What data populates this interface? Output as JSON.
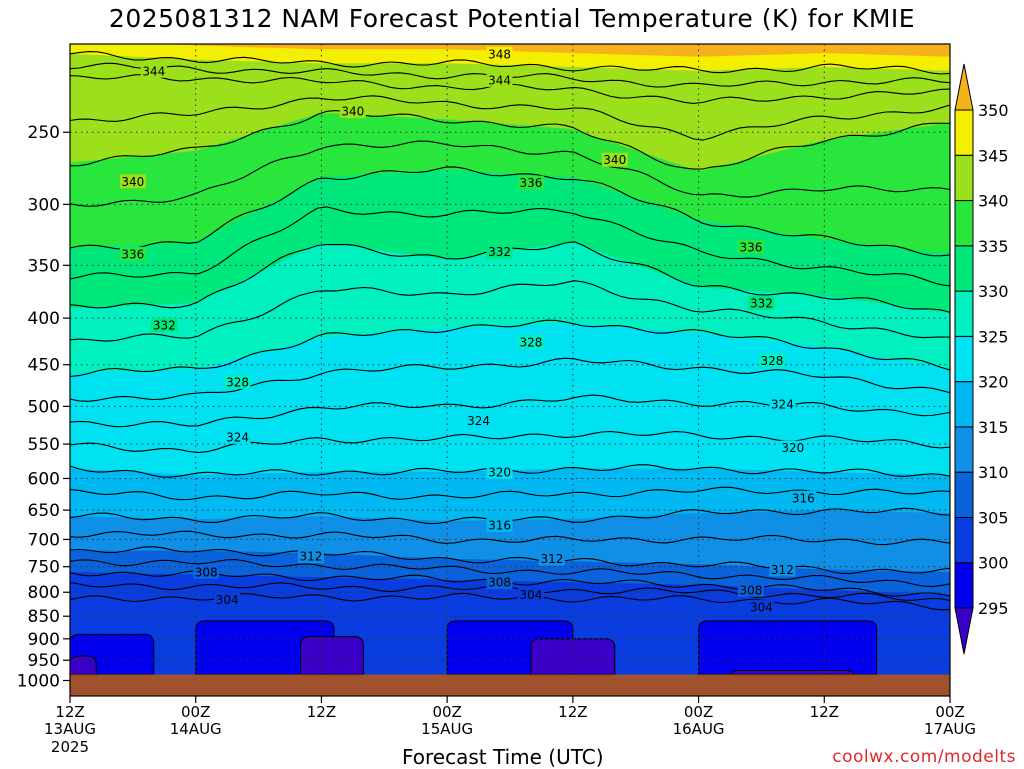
{
  "chart_data": {
    "type": "heatmap",
    "title": "2025081312 NAM Forecast Potential Temperature (K) for KMIE",
    "xlabel": "Forecast Time (UTC)",
    "ylabel": "",
    "credit": "coolwx.com/modelts",
    "y_scale": "pressure (log)",
    "y_range_hpa": [
      200,
      1040
    ],
    "y_ticks": [
      250,
      300,
      350,
      400,
      450,
      500,
      550,
      600,
      650,
      700,
      750,
      800,
      850,
      900,
      950,
      1000
    ],
    "x_hours_range": [
      0,
      84
    ],
    "x_ticks": [
      {
        "hour": 0,
        "time": "12Z",
        "date": "13AUG",
        "year": "2025"
      },
      {
        "hour": 12,
        "time": "00Z",
        "date": "14AUG",
        "year": ""
      },
      {
        "hour": 24,
        "time": "12Z",
        "date": "",
        "year": ""
      },
      {
        "hour": 36,
        "time": "00Z",
        "date": "15AUG",
        "year": ""
      },
      {
        "hour": 48,
        "time": "12Z",
        "date": "",
        "year": ""
      },
      {
        "hour": 60,
        "time": "00Z",
        "date": "16AUG",
        "year": ""
      },
      {
        "hour": 72,
        "time": "12Z",
        "date": "",
        "year": ""
      },
      {
        "hour": 84,
        "time": "00Z",
        "date": "17AUG",
        "year": ""
      }
    ],
    "grid": "dotted",
    "ground_level_hpa": 985,
    "colorbar": {
      "labels": [
        295,
        300,
        305,
        310,
        315,
        320,
        325,
        330,
        335,
        340,
        345,
        350
      ],
      "bands": [
        {
          "from": 290,
          "to": 295,
          "color": "#3b00c8"
        },
        {
          "from": 295,
          "to": 300,
          "color": "#0000ee"
        },
        {
          "from": 300,
          "to": 305,
          "color": "#0a3ddf"
        },
        {
          "from": 305,
          "to": 310,
          "color": "#0b63dc"
        },
        {
          "from": 310,
          "to": 315,
          "color": "#0f8fe6"
        },
        {
          "from": 315,
          "to": 320,
          "color": "#00b8f2"
        },
        {
          "from": 320,
          "to": 325,
          "color": "#00e2f2"
        },
        {
          "from": 325,
          "to": 330,
          "color": "#00f0c0"
        },
        {
          "from": 330,
          "to": 335,
          "color": "#00e77c"
        },
        {
          "from": 335,
          "to": 340,
          "color": "#29e63c"
        },
        {
          "from": 340,
          "to": 345,
          "color": "#9be01a"
        },
        {
          "from": 345,
          "to": 350,
          "color": "#f4ee00"
        },
        {
          "from": 350,
          "to": 355,
          "color": "#f6b21a"
        }
      ]
    },
    "contours_k": [
      304,
      308,
      312,
      316,
      320,
      324,
      328,
      332,
      336,
      340,
      344,
      348
    ],
    "contour_profile": [
      {
        "theta": 348,
        "hours": [
          0,
          12,
          24,
          36,
          48,
          60,
          72,
          84
        ],
        "hpa": [
          205,
          208,
          210,
          210,
          212,
          214,
          212,
          214
        ]
      },
      {
        "theta": 344,
        "hours": [
          0,
          12,
          24,
          36,
          48,
          60,
          72,
          84
        ],
        "hpa": [
          218,
          218,
          220,
          223,
          224,
          232,
          228,
          226
        ]
      },
      {
        "theta": 340,
        "hours": [
          0,
          12,
          24,
          36,
          48,
          60,
          72,
          84
        ],
        "hpa": [
          270,
          262,
          238,
          242,
          248,
          276,
          255,
          244
        ]
      },
      {
        "theta": 336,
        "hours": [
          0,
          12,
          24,
          36,
          48,
          60,
          72,
          84
        ],
        "hpa": [
          335,
          330,
          280,
          275,
          280,
          312,
          328,
          340
        ]
      },
      {
        "theta": 332,
        "hours": [
          0,
          12,
          24,
          36,
          48,
          60,
          72,
          84
        ],
        "hpa": [
          390,
          385,
          330,
          345,
          330,
          370,
          378,
          395
        ]
      },
      {
        "theta": 328,
        "hours": [
          0,
          12,
          24,
          36,
          48,
          60,
          72,
          84
        ],
        "hpa": [
          460,
          455,
          420,
          410,
          405,
          415,
          430,
          455
        ]
      },
      {
        "theta": 324,
        "hours": [
          0,
          12,
          24,
          36,
          48,
          60,
          72,
          84
        ],
        "hpa": [
          520,
          525,
          500,
          500,
          490,
          495,
          500,
          510
        ]
      },
      {
        "theta": 320,
        "hours": [
          0,
          12,
          24,
          36,
          48,
          60,
          72,
          84
        ],
        "hpa": [
          585,
          595,
          590,
          590,
          585,
          585,
          590,
          595
        ]
      },
      {
        "theta": 316,
        "hours": [
          0,
          12,
          24,
          36,
          48,
          60,
          72,
          84
        ],
        "hpa": [
          660,
          665,
          660,
          668,
          665,
          655,
          650,
          655
        ]
      },
      {
        "theta": 312,
        "hours": [
          0,
          12,
          24,
          36,
          48,
          60,
          72,
          84
        ],
        "hpa": [
          720,
          720,
          725,
          735,
          740,
          745,
          755,
          760
        ]
      },
      {
        "theta": 308,
        "hours": [
          0,
          12,
          24,
          36,
          48,
          60,
          72,
          84
        ],
        "hpa": [
          760,
          765,
          770,
          775,
          780,
          785,
          795,
          805
        ]
      },
      {
        "theta": 304,
        "hours": [
          0,
          12,
          24,
          36,
          48,
          60,
          72,
          84
        ],
        "hpa": [
          815,
          810,
          810,
          810,
          812,
          815,
          818,
          830
        ]
      }
    ],
    "contour_labels": [
      {
        "text": "348",
        "hour": 41,
        "hpa": 205
      },
      {
        "text": "344",
        "hour": 8,
        "hpa": 214
      },
      {
        "text": "344",
        "hour": 41,
        "hpa": 219
      },
      {
        "text": "340",
        "hour": 27,
        "hpa": 237
      },
      {
        "text": "340",
        "hour": 52,
        "hpa": 268
      },
      {
        "text": "340",
        "hour": 6,
        "hpa": 283
      },
      {
        "text": "336",
        "hour": 44,
        "hpa": 284
      },
      {
        "text": "336",
        "hour": 65,
        "hpa": 334
      },
      {
        "text": "336",
        "hour": 6,
        "hpa": 340
      },
      {
        "text": "332",
        "hour": 41,
        "hpa": 338
      },
      {
        "text": "332",
        "hour": 66,
        "hpa": 385
      },
      {
        "text": "332",
        "hour": 9,
        "hpa": 407
      },
      {
        "text": "328",
        "hour": 44,
        "hpa": 425
      },
      {
        "text": "328",
        "hour": 67,
        "hpa": 445
      },
      {
        "text": "328",
        "hour": 16,
        "hpa": 470
      },
      {
        "text": "324",
        "hour": 39,
        "hpa": 518
      },
      {
        "text": "324",
        "hour": 68,
        "hpa": 497
      },
      {
        "text": "324",
        "hour": 16,
        "hpa": 540
      },
      {
        "text": "320",
        "hour": 41,
        "hpa": 590
      },
      {
        "text": "320",
        "hour": 69,
        "hpa": 555
      },
      {
        "text": "316",
        "hour": 41,
        "hpa": 675
      },
      {
        "text": "316",
        "hour": 70,
        "hpa": 630
      },
      {
        "text": "312",
        "hour": 23,
        "hpa": 730
      },
      {
        "text": "312",
        "hour": 46,
        "hpa": 735
      },
      {
        "text": "312",
        "hour": 68,
        "hpa": 755
      },
      {
        "text": "308",
        "hour": 13,
        "hpa": 760
      },
      {
        "text": "308",
        "hour": 41,
        "hpa": 780
      },
      {
        "text": "308",
        "hour": 65,
        "hpa": 795
      },
      {
        "text": "304",
        "hour": 15,
        "hpa": 815
      },
      {
        "text": "304",
        "hour": 44,
        "hpa": 805
      },
      {
        "text": "304",
        "hour": 66,
        "hpa": 830
      }
    ],
    "surface_cells": [
      {
        "theta": 300,
        "hour_from": 0,
        "hour_to": 8,
        "hpa_top": 890
      },
      {
        "theta": 300,
        "hour_from": 12,
        "hour_to": 25.2,
        "hpa_top": 860
      },
      {
        "theta": 300,
        "hour_from": 36,
        "hour_to": 48,
        "hpa_top": 860
      },
      {
        "theta": 300,
        "hour_from": 60,
        "hour_to": 77,
        "hpa_top": 860
      },
      {
        "theta": 295,
        "hour_from": 0,
        "hour_to": 2.5,
        "hpa_top": 940
      },
      {
        "theta": 295,
        "hour_from": 22,
        "hour_to": 28,
        "hpa_top": 895
      },
      {
        "theta": 295,
        "hour_from": 44,
        "hour_to": 52,
        "hpa_top": 900
      },
      {
        "theta": 295,
        "hour_from": 63,
        "hour_to": 75,
        "hpa_top": 975
      }
    ]
  }
}
